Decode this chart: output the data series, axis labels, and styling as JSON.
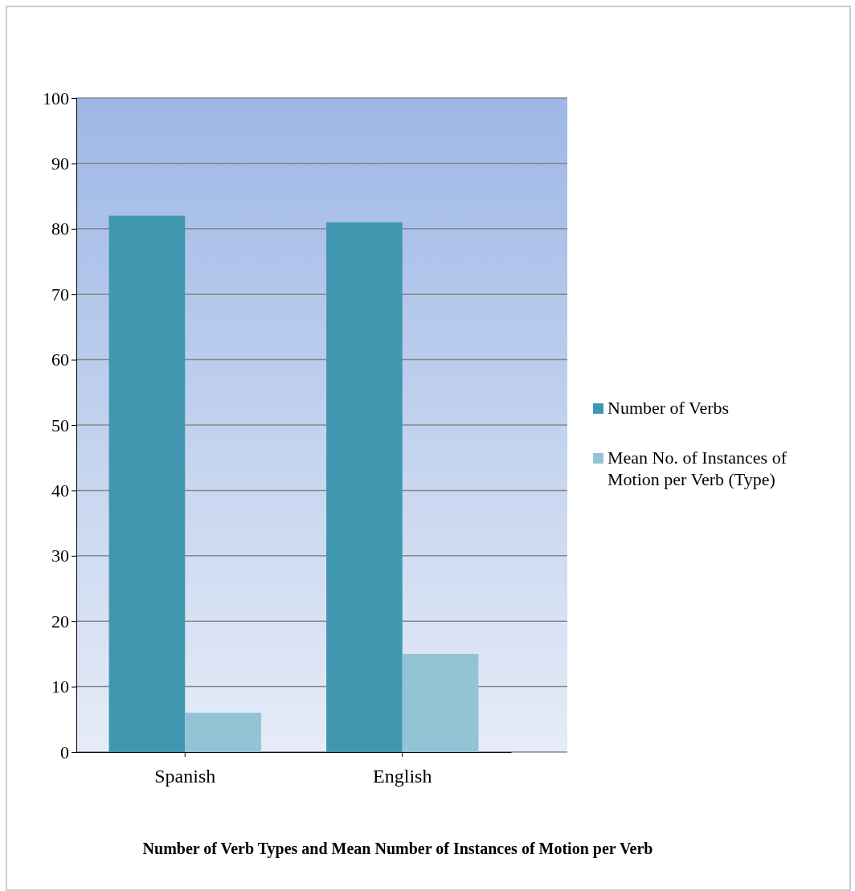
{
  "chart_data": {
    "type": "bar",
    "title": "Number of Verb Types and Mean Number of Instances of Motion per Verb",
    "categories": [
      "Spanish",
      "English"
    ],
    "series": [
      {
        "name": "Number of Verbs",
        "color": "#4197b0",
        "values": [
          82,
          81
        ]
      },
      {
        "name": "Mean No. of Instances of Motion per Verb (Type)",
        "color": "#92c4d6",
        "values": [
          6,
          15
        ]
      }
    ],
    "ylim": [
      0,
      100
    ],
    "yticks": [
      0,
      10,
      20,
      30,
      40,
      50,
      60,
      70,
      80,
      90,
      100
    ],
    "grid": "y",
    "legend": "right"
  }
}
